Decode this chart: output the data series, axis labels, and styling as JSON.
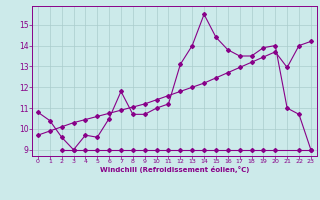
{
  "bg_color": "#cceaea",
  "line_color": "#880088",
  "grid_color": "#aacccc",
  "xlabel": "Windchill (Refroidissement éolien,°C)",
  "xlabel_color": "#880088",
  "tick_color": "#880088",
  "ylim": [
    8.7,
    15.9
  ],
  "xlim": [
    -0.5,
    23.5
  ],
  "yticks": [
    9,
    10,
    11,
    12,
    13,
    14,
    15
  ],
  "xticks": [
    0,
    1,
    2,
    3,
    4,
    5,
    6,
    7,
    8,
    9,
    10,
    11,
    12,
    13,
    14,
    15,
    16,
    17,
    18,
    19,
    20,
    21,
    22,
    23
  ],
  "series1_x": [
    0,
    1,
    2,
    3,
    4,
    5,
    6,
    7,
    8,
    9,
    10,
    11,
    12,
    13,
    14,
    15,
    16,
    17,
    18,
    19,
    20,
    21,
    22,
    23
  ],
  "series1_y": [
    10.8,
    10.4,
    9.6,
    9.0,
    9.7,
    9.6,
    10.5,
    11.8,
    10.7,
    10.7,
    11.0,
    11.2,
    13.1,
    14.0,
    15.5,
    14.4,
    13.8,
    13.5,
    13.5,
    13.9,
    14.0,
    11.0,
    10.7,
    9.0
  ],
  "series2_x": [
    2,
    3,
    4,
    5,
    6,
    7,
    8,
    9,
    10,
    11,
    12,
    13,
    14,
    15,
    16,
    17,
    18,
    19,
    20,
    22,
    23
  ],
  "series2_y": [
    9.0,
    9.0,
    9.0,
    9.0,
    9.0,
    9.0,
    9.0,
    9.0,
    9.0,
    9.0,
    9.0,
    9.0,
    9.0,
    9.0,
    9.0,
    9.0,
    9.0,
    9.0,
    9.0,
    9.0,
    9.0
  ],
  "series3_x": [
    0,
    1,
    2,
    3,
    4,
    5,
    6,
    7,
    8,
    9,
    10,
    11,
    12,
    13,
    14,
    15,
    16,
    17,
    18,
    19,
    20,
    21,
    22,
    23
  ],
  "series3_y": [
    9.7,
    9.9,
    10.1,
    10.3,
    10.45,
    10.6,
    10.75,
    10.9,
    11.05,
    11.2,
    11.4,
    11.6,
    11.8,
    12.0,
    12.2,
    12.45,
    12.7,
    12.95,
    13.2,
    13.45,
    13.7,
    12.95,
    14.0,
    14.2
  ]
}
